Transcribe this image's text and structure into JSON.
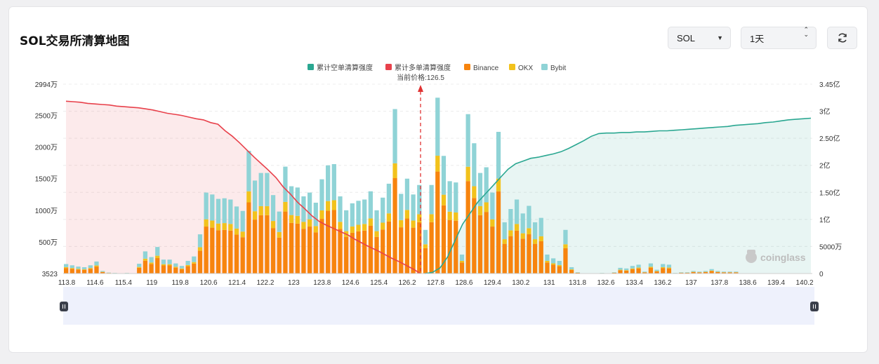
{
  "header": {
    "title": "SOL交易所清算地图",
    "coin_select": "SOL",
    "period_select": "1天"
  },
  "colors": {
    "short_cum": "#2aa791",
    "long_cum": "#e8414b",
    "binance": "#f7840e",
    "okx": "#f2c21c",
    "bybit": "#8fd3d6",
    "price_line": "#e03232"
  },
  "chart_data": {
    "type": "bar",
    "legend": [
      "累计空单清算强度",
      "累计多单清算强度",
      "Binance",
      "OKX",
      "Bybit"
    ],
    "current_price_label": "当前价格:126.5",
    "current_price": 126.5,
    "watermark": "coinglass",
    "x_tick_labels": [
      "113.8",
      "114.6",
      "115.4",
      "119",
      "119.8",
      "120.6",
      "121.4",
      "122.2",
      "123",
      "123.8",
      "124.6",
      "125.4",
      "126.2",
      "127.8",
      "128.6",
      "129.4",
      "130.2",
      "131",
      "131.8",
      "132.6",
      "133.4",
      "136.2",
      "137",
      "137.8",
      "138.6",
      "139.4",
      "140.2"
    ],
    "y_left_ticks": [
      "2994万",
      "2500万",
      "2000万",
      "1500万",
      "1000万",
      "500万",
      "3523"
    ],
    "y_right_ticks": [
      "3.45亿",
      "3亿",
      "2.50亿",
      "2亿",
      "1.50亿",
      "1亿",
      "5000万",
      "0"
    ],
    "y_left_range_wan": [
      0,
      2994
    ],
    "y_right_range_yi": [
      0,
      3.45
    ],
    "bars_total_wan": [
      150,
      130,
      110,
      100,
      130,
      190,
      40,
      15,
      10,
      0,
      10,
      0,
      155,
      350,
      260,
      420,
      220,
      220,
      160,
      120,
      200,
      270,
      620,
      1280,
      1250,
      1180,
      1190,
      1170,
      1060,
      990,
      1940,
      1470,
      1590,
      1590,
      1240,
      980,
      1690,
      1380,
      1360,
      1220,
      1280,
      1120,
      1490,
      1710,
      1730,
      1220,
      1000,
      1110,
      1150,
      1170,
      1300,
      1000,
      1200,
      1420,
      2600,
      1260,
      1500,
      1250,
      1400,
      690,
      1400,
      2780,
      1860,
      1460,
      1440,
      300,
      2520,
      2060,
      1590,
      1680,
      1280,
      2240,
      810,
      1020,
      1170,
      950,
      1070,
      810,
      880,
      300,
      240,
      200,
      690,
      100,
      20,
      5,
      0,
      0,
      10,
      0,
      20,
      90,
      80,
      120,
      140,
      30,
      160,
      60,
      150,
      140,
      10,
      20,
      20,
      40,
      30,
      40,
      70,
      40,
      30,
      30,
      30,
      0,
      0,
      0,
      0,
      0,
      0,
      0,
      0,
      0,
      0,
      0,
      0
    ],
    "bars_by_exchange_wan": null,
    "long_cum_yi": [
      3.14,
      3.13,
      3.12,
      3.1,
      3.09,
      3.08,
      3.07,
      3.05,
      3.04,
      3.03,
      3.02,
      3.0,
      2.98,
      2.95,
      2.92,
      2.9,
      2.88,
      2.85,
      2.82,
      2.8,
      2.75,
      2.72,
      2.6,
      2.5,
      2.38,
      2.25,
      2.12,
      2.0,
      1.88,
      1.75,
      1.58,
      1.45,
      1.3,
      1.18,
      1.05,
      0.95,
      0.88,
      0.82,
      0.76,
      0.7,
      0.62,
      0.55,
      0.48,
      0.42,
      0.35,
      0.28,
      0.22,
      0.15,
      0.08,
      0.0
    ],
    "short_cum_yi": [
      0.0,
      0.02,
      0.1,
      0.3,
      0.6,
      0.9,
      1.1,
      1.3,
      1.45,
      1.6,
      1.75,
      1.9,
      2.0,
      2.05,
      2.1,
      2.12,
      2.15,
      2.18,
      2.22,
      2.28,
      2.35,
      2.42,
      2.5,
      2.55,
      2.56,
      2.56,
      2.57,
      2.57,
      2.58,
      2.58,
      2.59,
      2.6,
      2.6,
      2.61,
      2.62,
      2.63,
      2.64,
      2.65,
      2.66,
      2.67,
      2.68,
      2.7,
      2.71,
      2.72,
      2.73,
      2.75,
      2.76,
      2.78,
      2.8,
      2.81,
      2.82,
      2.83
    ]
  }
}
